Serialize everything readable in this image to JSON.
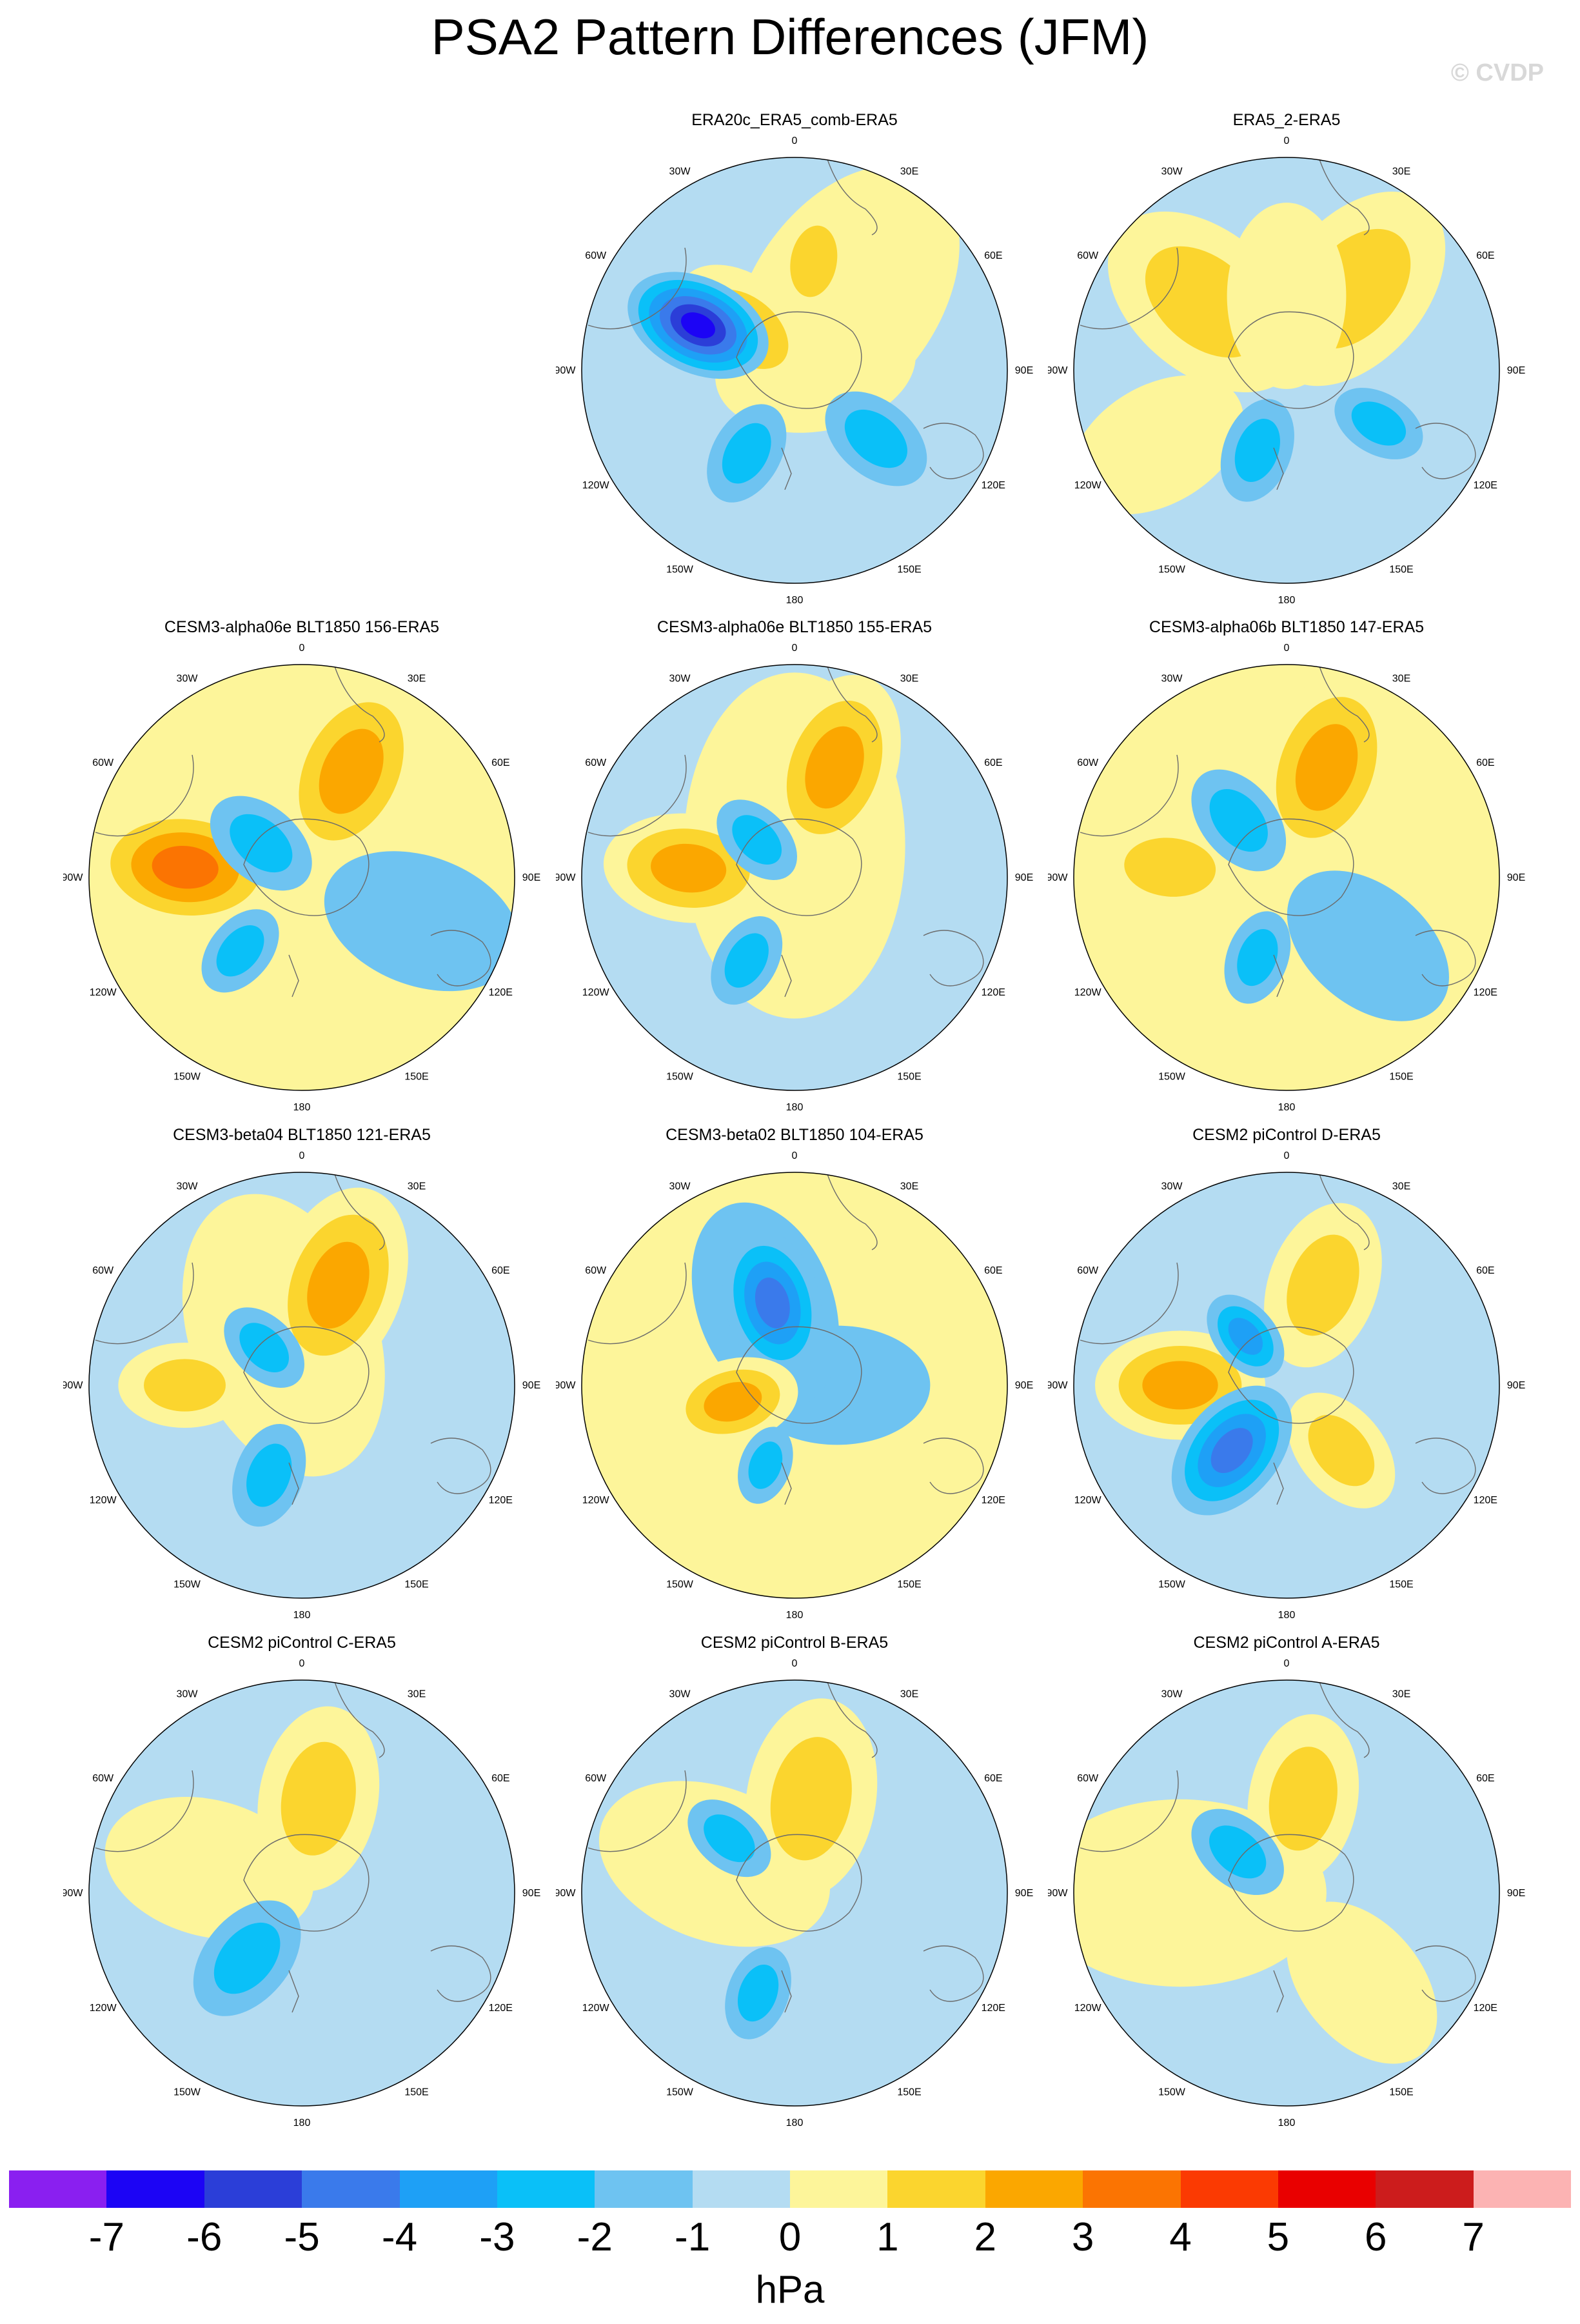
{
  "title": "PSA2 Pattern Differences (JFM)",
  "copyright": "© CVDP",
  "longitude_labels": [
    "0",
    "30E",
    "60E",
    "90E",
    "120E",
    "150E",
    "180",
    "150W",
    "120W",
    "90W",
    "60W",
    "30W"
  ],
  "colorbar": {
    "colors": [
      "#8a1ff0",
      "#1c04f5",
      "#2b3ed8",
      "#3a7aeb",
      "#1ea0f6",
      "#0ac0f8",
      "#6ec3f1",
      "#b4dcf2",
      "#fdf59a",
      "#fbd52e",
      "#fba700",
      "#fb7402",
      "#fb3a02",
      "#e90000",
      "#cc1c1c",
      "#fcb3b3"
    ],
    "tick_labels": [
      "-7",
      "-6",
      "-5",
      "-4",
      "-3",
      "-2",
      "-1",
      "0",
      "1",
      "2",
      "3",
      "4",
      "5",
      "6",
      "7"
    ],
    "units": "hPa"
  },
  "panels": [
    {
      "title": "ERA20c_ERA5_comb-ERA5",
      "background": "#b4dcf2",
      "anomalies": [
        {
          "lon": 145,
          "r": 0.42,
          "size": 0.55,
          "value": 1
        },
        {
          "lon": 100,
          "r": 0.1,
          "size": 0.38,
          "value": 1
        },
        {
          "lon": 230,
          "r": 0.3,
          "size": 0.3,
          "value": 2
        },
        {
          "lon": 170,
          "r": 0.52,
          "size": 0.22,
          "value": 2
        },
        {
          "lon": 245,
          "r": 0.5,
          "size": 0.28,
          "value": -6
        },
        {
          "lon": 330,
          "r": 0.45,
          "size": 0.2,
          "value": -2
        },
        {
          "lon": 50,
          "r": 0.5,
          "size": 0.22,
          "value": -2
        }
      ]
    },
    {
      "title": "ERA5_2-ERA5",
      "background": "#b4dcf2",
      "anomalies": [
        {
          "lon": 230,
          "r": 0.5,
          "size": 0.42,
          "value": 2
        },
        {
          "lon": 140,
          "r": 0.5,
          "size": 0.42,
          "value": 2
        },
        {
          "lon": 180,
          "r": 0.35,
          "size": 0.35,
          "value": 1
        },
        {
          "lon": 300,
          "r": 0.7,
          "size": 0.35,
          "value": 1
        },
        {
          "lon": 340,
          "r": 0.4,
          "size": 0.2,
          "value": -2
        },
        {
          "lon": 60,
          "r": 0.5,
          "size": 0.18,
          "value": -2
        }
      ]
    },
    {
      "title": "CESM3-alpha06e BLT1850 156-ERA5",
      "background": "#fdf59a",
      "anomalies": [
        {
          "lon": 265,
          "r": 0.55,
          "size": 0.36,
          "value": 4
        },
        {
          "lon": 155,
          "r": 0.55,
          "size": 0.38,
          "value": 3
        },
        {
          "lon": 230,
          "r": 0.25,
          "size": 0.22,
          "value": -2
        },
        {
          "lon": 320,
          "r": 0.45,
          "size": 0.18,
          "value": -2
        },
        {
          "lon": 70,
          "r": 0.6,
          "size": 0.38,
          "value": -1
        }
      ]
    },
    {
      "title": "CESM3-alpha06e BLT1850 155-ERA5",
      "background": "#b4dcf2",
      "anomalies": [
        {
          "lon": 180,
          "r": 0.15,
          "size": 0.65,
          "value": 1
        },
        {
          "lon": 265,
          "r": 0.5,
          "size": 0.32,
          "value": 3
        },
        {
          "lon": 160,
          "r": 0.55,
          "size": 0.36,
          "value": 3
        },
        {
          "lon": 225,
          "r": 0.25,
          "size": 0.18,
          "value": -2
        },
        {
          "lon": 330,
          "r": 0.45,
          "size": 0.18,
          "value": -2
        }
      ]
    },
    {
      "title": "CESM3-alpha06b BLT1850 147-ERA5",
      "background": "#fdf59a",
      "anomalies": [
        {
          "lon": 265,
          "r": 0.55,
          "size": 0.28,
          "value": 2
        },
        {
          "lon": 160,
          "r": 0.55,
          "size": 0.38,
          "value": 3
        },
        {
          "lon": 220,
          "r": 0.35,
          "size": 0.22,
          "value": -2
        },
        {
          "lon": 50,
          "r": 0.5,
          "size": 0.35,
          "value": -1
        },
        {
          "lon": 340,
          "r": 0.4,
          "size": 0.18,
          "value": -2
        }
      ]
    },
    {
      "title": "CESM3-beta04 BLT1850 121-ERA5",
      "background": "#b4dcf2",
      "anomalies": [
        {
          "lon": 200,
          "r": 0.25,
          "size": 0.55,
          "value": 1
        },
        {
          "lon": 270,
          "r": 0.55,
          "size": 0.25,
          "value": 2
        },
        {
          "lon": 160,
          "r": 0.5,
          "size": 0.38,
          "value": 3
        },
        {
          "lon": 225,
          "r": 0.25,
          "size": 0.18,
          "value": -2
        },
        {
          "lon": 340,
          "r": 0.45,
          "size": 0.2,
          "value": -2
        }
      ]
    },
    {
      "title": "CESM3-beta02 BLT1850 104-ERA5",
      "background": "#fdf59a",
      "anomalies": [
        {
          "lon": 90,
          "r": 0.2,
          "size": 0.35,
          "value": -1
        },
        {
          "lon": 200,
          "r": 0.4,
          "size": 0.4,
          "value": -1
        },
        {
          "lon": 195,
          "r": 0.4,
          "size": 0.28,
          "value": -4
        },
        {
          "lon": 285,
          "r": 0.3,
          "size": 0.25,
          "value": 3
        },
        {
          "lon": 340,
          "r": 0.4,
          "size": 0.15,
          "value": -2
        }
      ]
    },
    {
      "title": "CESM2 piControl D-ERA5",
      "background": "#b4dcf2",
      "anomalies": [
        {
          "lon": 270,
          "r": 0.5,
          "size": 0.32,
          "value": 3
        },
        {
          "lon": 160,
          "r": 0.5,
          "size": 0.32,
          "value": 2
        },
        {
          "lon": 40,
          "r": 0.4,
          "size": 0.25,
          "value": 2
        },
        {
          "lon": 320,
          "r": 0.4,
          "size": 0.28,
          "value": -4
        },
        {
          "lon": 220,
          "r": 0.3,
          "size": 0.18,
          "value": -3
        }
      ]
    },
    {
      "title": "CESM2 piControl C-ERA5",
      "background": "#b4dcf2",
      "anomalies": [
        {
          "lon": 255,
          "r": 0.45,
          "size": 0.4,
          "value": 1
        },
        {
          "lon": 170,
          "r": 0.45,
          "size": 0.35,
          "value": 2
        },
        {
          "lon": 320,
          "r": 0.4,
          "size": 0.25,
          "value": -2
        }
      ]
    },
    {
      "title": "CESM2 piControl B-ERA5",
      "background": "#b4dcf2",
      "anomalies": [
        {
          "lon": 250,
          "r": 0.4,
          "size": 0.45,
          "value": 1
        },
        {
          "lon": 170,
          "r": 0.45,
          "size": 0.38,
          "value": 2
        },
        {
          "lon": 230,
          "r": 0.4,
          "size": 0.18,
          "value": -2
        },
        {
          "lon": 340,
          "r": 0.5,
          "size": 0.18,
          "value": -2
        }
      ]
    },
    {
      "title": "CESM2 piControl A-ERA5",
      "background": "#b4dcf2",
      "anomalies": [
        {
          "lon": 270,
          "r": 0.5,
          "size": 0.55,
          "value": 1
        },
        {
          "lon": 40,
          "r": 0.55,
          "size": 0.35,
          "value": 1
        },
        {
          "lon": 170,
          "r": 0.45,
          "size": 0.32,
          "value": 2
        },
        {
          "lon": 230,
          "r": 0.3,
          "size": 0.2,
          "value": -2
        }
      ]
    }
  ]
}
